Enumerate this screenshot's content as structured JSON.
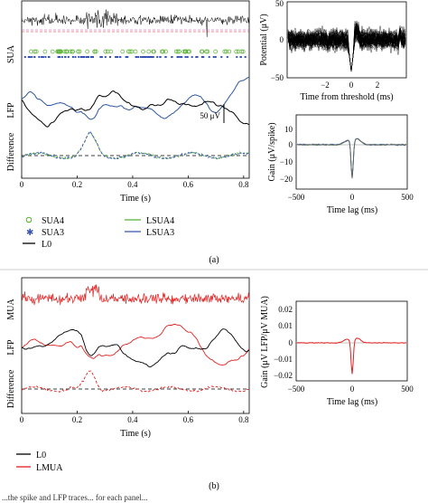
{
  "colors": {
    "black": "#000000",
    "green": "#55b030",
    "blue": "#3553b5",
    "red": "#e02020",
    "magenta": "#cc44cc",
    "gray": "#666666"
  },
  "panel_a": {
    "row_labels": [
      "SUA",
      "LFP",
      "Difference"
    ],
    "scale_bar_label": "50 μV",
    "x_axis": {
      "title": "Time (s)",
      "ticks": [
        "0",
        "0.2",
        "0.4",
        "0.6",
        "0.8"
      ]
    },
    "waveform_inset": {
      "ylabel": "Potential (μV)",
      "xlabel": "Time from threshold (ms)",
      "yticks": [
        "50",
        "0",
        "−50"
      ],
      "xticks": [
        "−2",
        "0",
        "2"
      ]
    },
    "gain_inset": {
      "ylabel": "Gain (μV/spike)",
      "xlabel": "Time lag (ms)",
      "yticks": [
        "10",
        "0",
        "−10",
        "−20"
      ],
      "xticks": [
        "−500",
        "0",
        "500"
      ]
    },
    "legend": [
      {
        "label": "SUA4",
        "marker": "circle",
        "color": "#55b030"
      },
      {
        "label": "SUA3",
        "marker": "star",
        "color": "#3553b5"
      },
      {
        "label": "L0",
        "marker": "line",
        "color": "#000000"
      },
      {
        "label": "LSUA4",
        "marker": "line",
        "color": "#55b030"
      },
      {
        "label": "LSUA3",
        "marker": "line",
        "color": "#3553b5"
      }
    ],
    "caption": "(a)"
  },
  "panel_b": {
    "row_labels": [
      "MUA",
      "LFP",
      "Difference"
    ],
    "x_axis": {
      "title": "Time (s)",
      "ticks": [
        "0",
        "0.2",
        "0.4",
        "0.6",
        "0.8"
      ]
    },
    "gain_inset": {
      "ylabel": "Gain (μV LFP/μV MUA)",
      "xlabel": "Time lag (ms)",
      "yticks": [
        "0.02",
        "0.01",
        "0",
        "−0.01",
        "−0.02"
      ],
      "xticks": [
        "−500",
        "0",
        "500"
      ]
    },
    "legend": [
      {
        "label": "L0",
        "color": "#000000"
      },
      {
        "label": "LMUA",
        "color": "#e02020"
      }
    ],
    "caption": "(b)"
  },
  "footer_text": "...the spike and LFP traces... for each panel..."
}
